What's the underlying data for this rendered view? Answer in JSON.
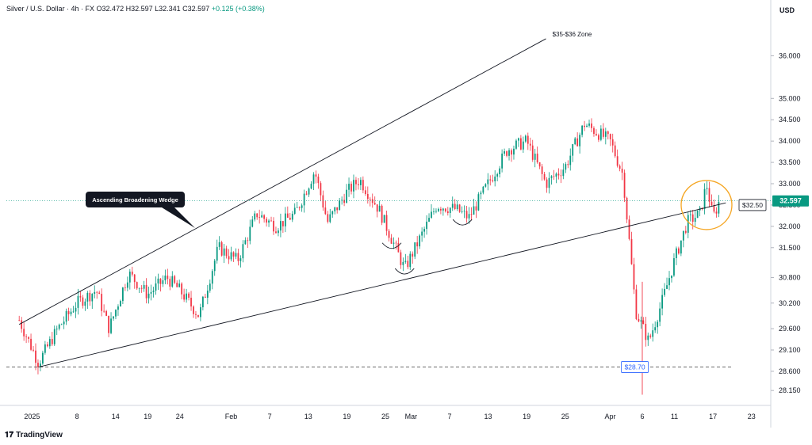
{
  "header": {
    "symbol": "Silver / U.S. Dollar · 4h · FX",
    "ohlc": "O32.472 H32.597 L32.341 C32.597",
    "change": "+0.125 (+0.38%)"
  },
  "currency": "USD",
  "branding": "TradingView",
  "colors": {
    "up": "#089981",
    "down": "#f23645",
    "trend": "#131722",
    "highlight": "#f5a623",
    "price_tag": "#089981",
    "support_tag": "#2962ff"
  },
  "chart_data": {
    "type": "candlestick",
    "title": "",
    "y_ticks": [
      "36.000",
      "35.000",
      "34.500",
      "34.000",
      "33.500",
      "33.000",
      "32.500",
      "32.000",
      "31.500",
      "30.800",
      "30.200",
      "29.600",
      "29.100",
      "28.600",
      "28.150"
    ],
    "x_ticks": [
      "2025",
      "8",
      "14",
      "19",
      "24",
      "Feb",
      "7",
      "13",
      "19",
      "25",
      "Mar",
      "7",
      "13",
      "19",
      "25",
      "Apr",
      "6",
      "11",
      "17",
      "23"
    ],
    "ylim": [
      27.8,
      36.9
    ],
    "last_price": {
      "value": 32.597,
      "label": "32.597"
    },
    "resistance_tag": {
      "value": 32.5,
      "label": "$32.50"
    },
    "support_tag": {
      "value": 28.7,
      "label": "$28.70"
    },
    "pattern_label": "Ascending Broadening Wedge",
    "target_label": "$35-$36 Zone",
    "trendlines": [
      {
        "name": "upper",
        "from": [
          "2024-12-30",
          29.7
        ],
        "to": [
          "2025-03-22",
          36.4
        ]
      },
      {
        "name": "lower",
        "from": [
          "2025-01-02",
          28.7
        ],
        "to": [
          "2025-04-19",
          32.55
        ]
      }
    ],
    "price_path": [
      [
        "2024-12-30",
        29.8
      ],
      [
        "2025-01-02",
        28.8
      ],
      [
        "2025-01-05",
        29.6
      ],
      [
        "2025-01-08",
        30.2
      ],
      [
        "2025-01-11",
        30.5
      ],
      [
        "2025-01-13",
        29.6
      ],
      [
        "2025-01-16",
        30.9
      ],
      [
        "2025-01-19",
        30.4
      ],
      [
        "2025-01-22",
        30.8
      ],
      [
        "2025-01-24",
        30.5
      ],
      [
        "2025-01-27",
        29.9
      ],
      [
        "2025-01-30",
        31.5
      ],
      [
        "2025-02-02",
        31.2
      ],
      [
        "2025-02-05",
        32.3
      ],
      [
        "2025-02-08",
        32.0
      ],
      [
        "2025-02-11",
        32.3
      ],
      [
        "2025-02-14",
        33.3
      ],
      [
        "2025-02-16",
        32.1
      ],
      [
        "2025-02-19",
        32.8
      ],
      [
        "2025-02-21",
        33.1
      ],
      [
        "2025-02-24",
        32.4
      ],
      [
        "2025-02-26",
        31.7
      ],
      [
        "2025-02-28",
        31.0
      ],
      [
        "2025-03-02",
        31.6
      ],
      [
        "2025-03-05",
        32.5
      ],
      [
        "2025-03-08",
        32.4
      ],
      [
        "2025-03-10",
        32.2
      ],
      [
        "2025-03-13",
        33.0
      ],
      [
        "2025-03-16",
        33.8
      ],
      [
        "2025-03-19",
        34.0
      ],
      [
        "2025-03-22",
        33.0
      ],
      [
        "2025-03-25",
        33.4
      ],
      [
        "2025-03-28",
        34.4
      ],
      [
        "2025-04-01",
        34.0
      ],
      [
        "2025-04-03",
        33.2
      ],
      [
        "2025-04-05",
        30.0
      ],
      [
        "2025-04-07",
        29.3
      ],
      [
        "2025-04-09",
        30.2
      ],
      [
        "2025-04-11",
        31.2
      ],
      [
        "2025-04-13",
        32.1
      ],
      [
        "2025-04-15",
        32.3
      ],
      [
        "2025-04-16",
        33.0
      ],
      [
        "2025-04-17",
        32.2
      ],
      [
        "2025-04-18",
        32.6
      ]
    ]
  }
}
